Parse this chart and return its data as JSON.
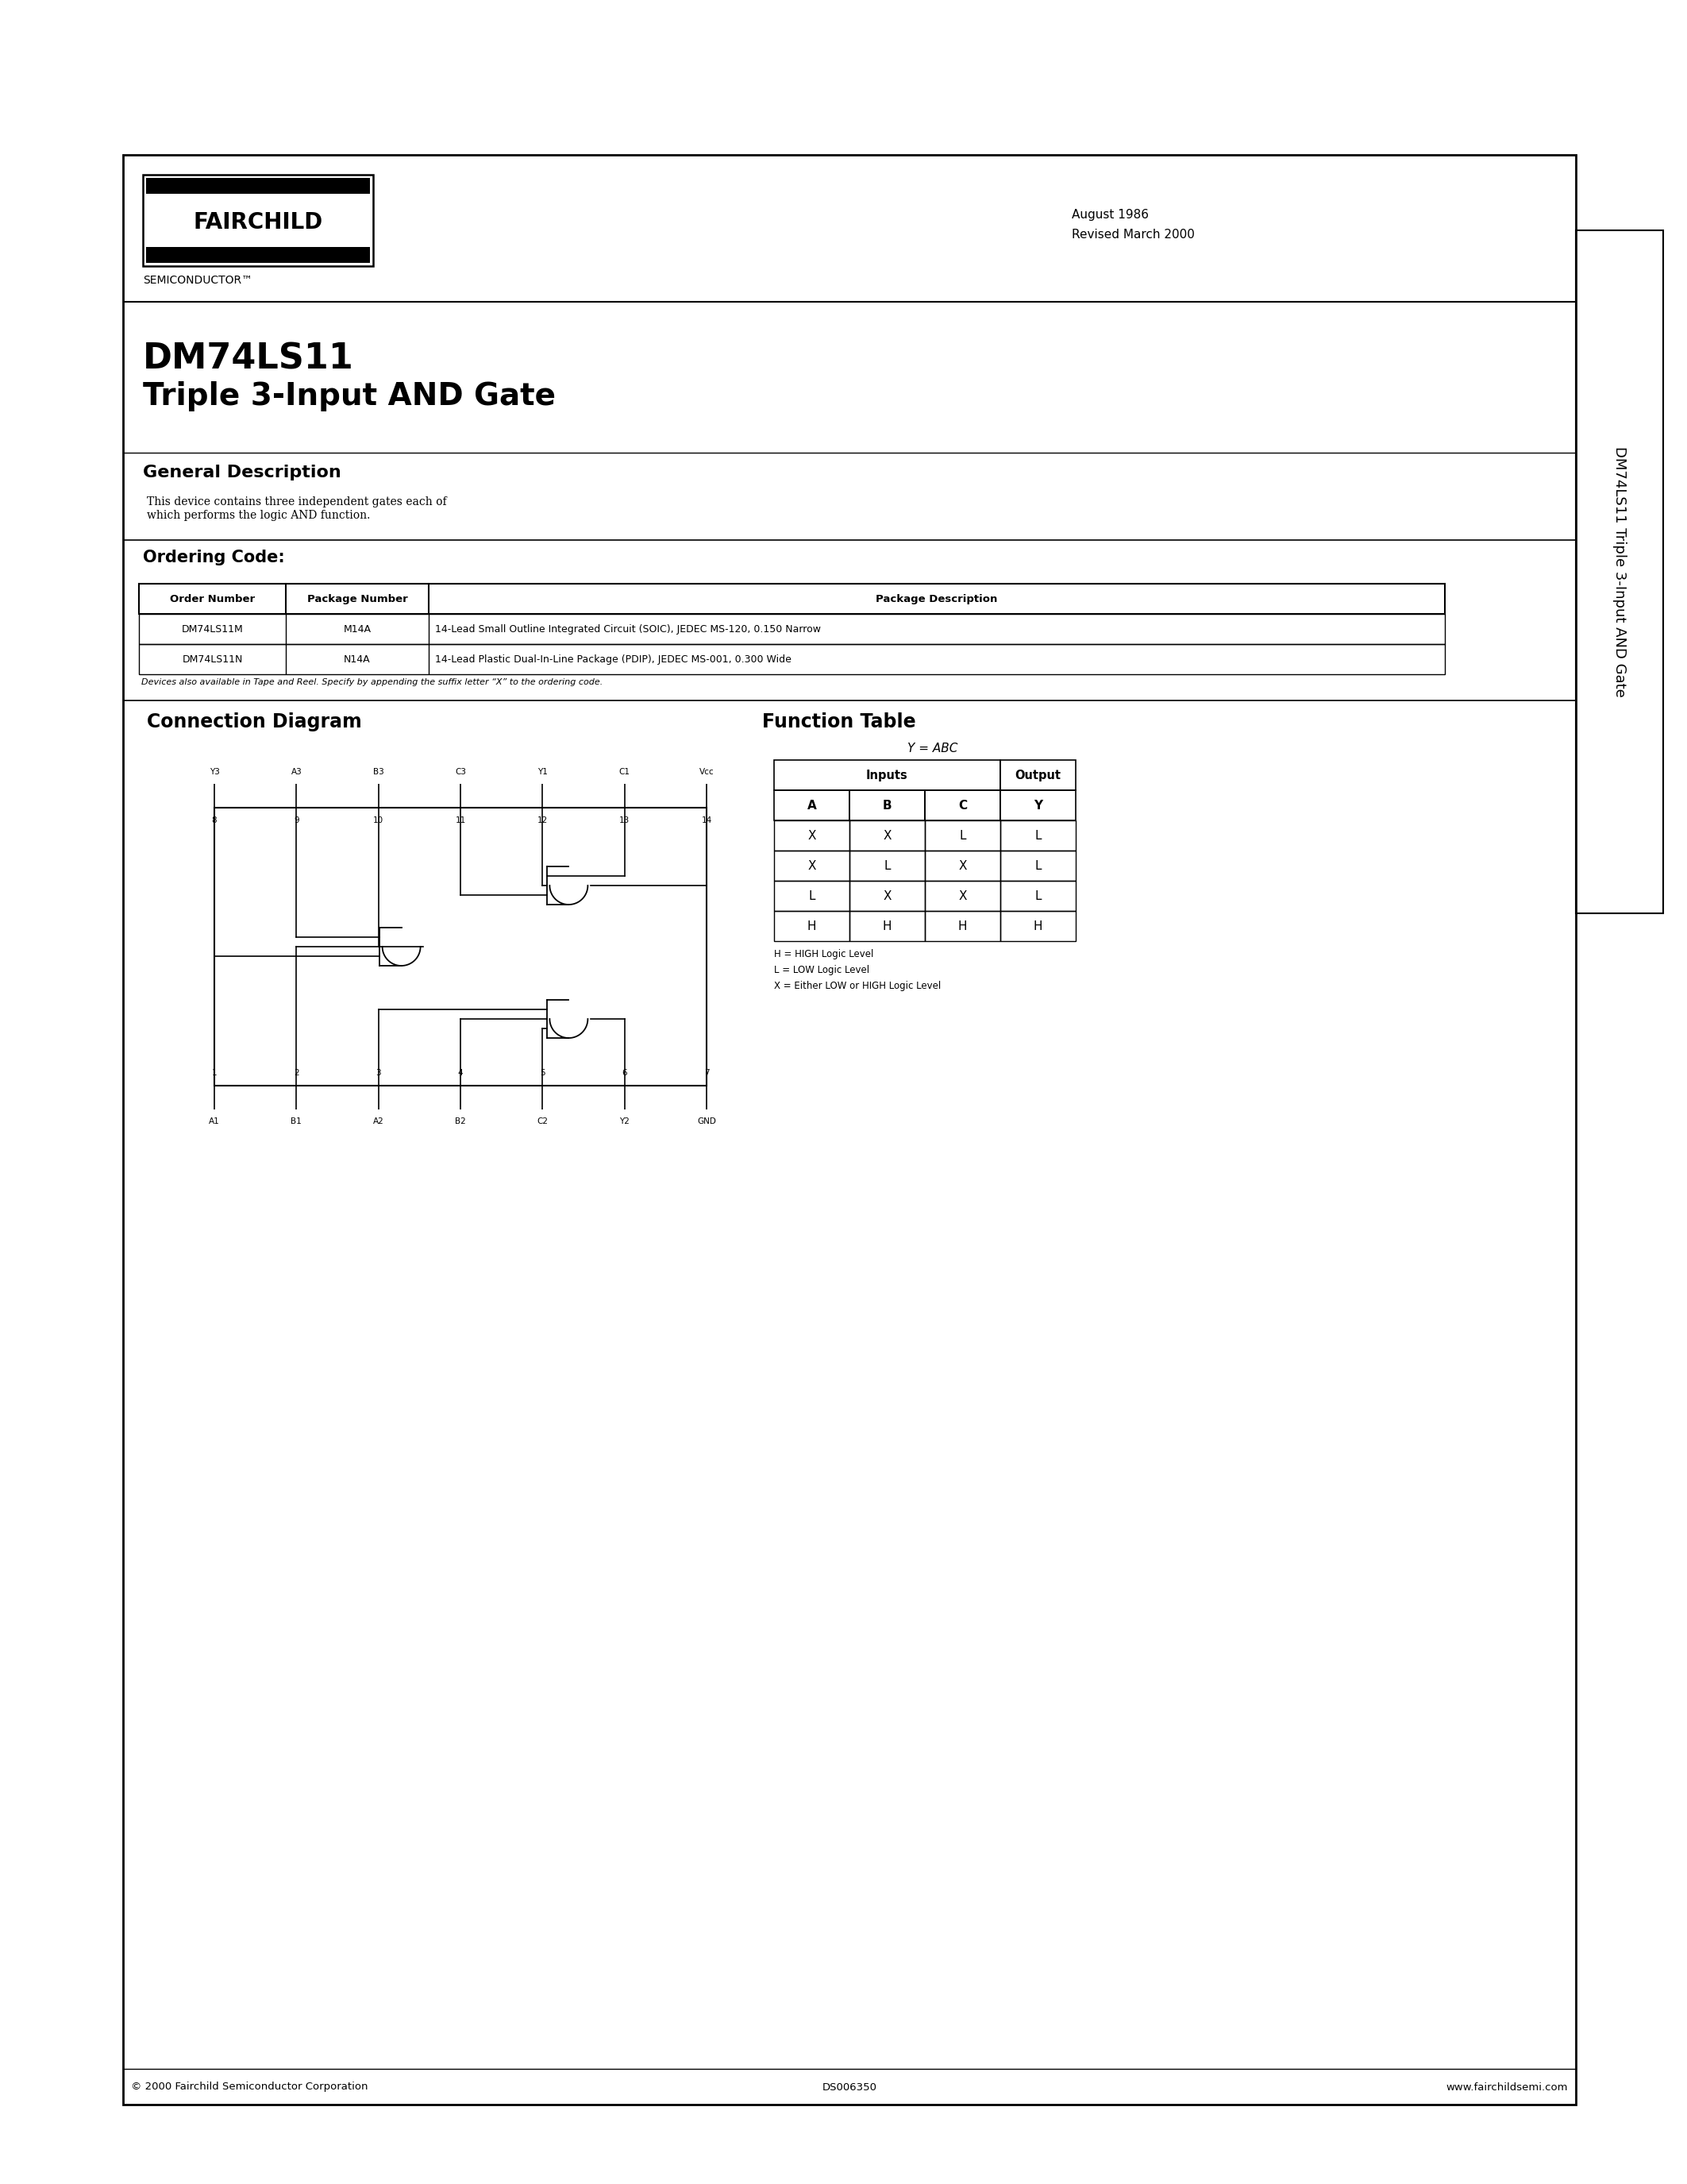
{
  "page_bg": "#ffffff",
  "title_part": "DM74LS11",
  "title_desc": "Triple 3-Input AND Gate",
  "date_line1": "August 1986",
  "date_line2": "Revised March 2000",
  "logo_text": "FAIRCHILD",
  "logo_sub": "SEMICONDUCTOR™",
  "section_gen_desc": "General Description",
  "gen_desc_line1": "This device contains three independent gates each of",
  "gen_desc_line2": "which performs the logic AND function.",
  "section_ordering": "Ordering Code:",
  "order_table_headers": [
    "Order Number",
    "Package Number",
    "Package Description"
  ],
  "order_table_rows": [
    [
      "DM74LS11M",
      "M14A",
      "14-Lead Small Outline Integrated Circuit (SOIC), JEDEC MS-120, 0.150 Narrow"
    ],
    [
      "DM74LS11N",
      "N14A",
      "14-Lead Plastic Dual-In-Line Package (PDIP), JEDEC MS-001, 0.300 Wide"
    ]
  ],
  "order_table_note": "Devices also available in Tape and Reel. Specify by appending the suffix letter “X” to the ordering code.",
  "section_connection": "Connection Diagram",
  "section_function": "Function Table",
  "function_eq": "Y = ABC",
  "function_col_headers": [
    "A",
    "B",
    "C",
    "Y"
  ],
  "function_rows": [
    [
      "X",
      "X",
      "L",
      "L"
    ],
    [
      "X",
      "L",
      "X",
      "L"
    ],
    [
      "L",
      "X",
      "X",
      "L"
    ],
    [
      "H",
      "H",
      "H",
      "H"
    ]
  ],
  "function_legend": [
    "H = HIGH Logic Level",
    "L = LOW Logic Level",
    "X = Either LOW or HIGH Logic Level"
  ],
  "side_label": "DM74LS11 Triple 3-Input AND Gate",
  "footer_left": "© 2000 Fairchild Semiconductor Corporation",
  "footer_mid": "DS006350",
  "footer_right": "www.fairchildsemi.com",
  "pin_labels_top": [
    "Vᴄᴄ",
    "C1",
    "Y1",
    "C3",
    "B3",
    "A3",
    "Y3"
  ],
  "pin_nums_top": [
    "14",
    "13",
    "12",
    "11",
    "10",
    "9",
    "8"
  ],
  "pin_labels_bot": [
    "A1",
    "B1",
    "A2",
    "B2",
    "C2",
    "Y2",
    "GND"
  ],
  "pin_nums_bot": [
    "1",
    "2",
    "3",
    "4",
    "5",
    "6",
    "7"
  ]
}
